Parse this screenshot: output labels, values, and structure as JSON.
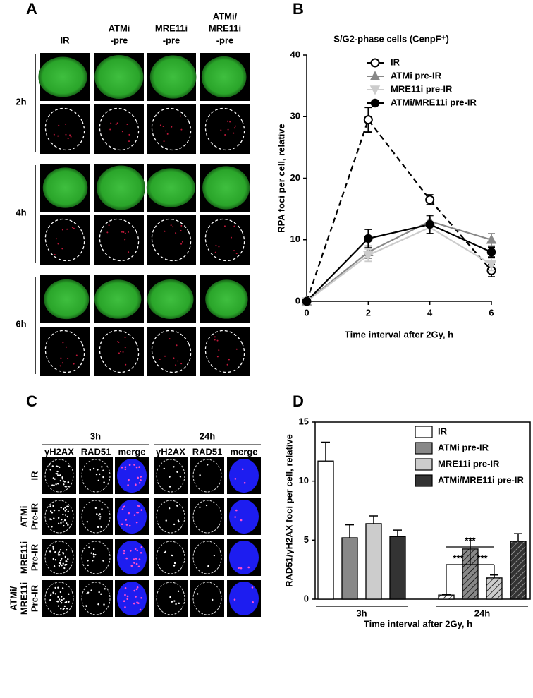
{
  "panel_labels": [
    "A",
    "B",
    "C",
    "D"
  ],
  "panel_a": {
    "columns": [
      [
        "IR"
      ],
      [
        "ATMi",
        "-pre"
      ],
      [
        "MRE11i",
        "-pre"
      ],
      [
        "ATMi/",
        "MRE11i",
        "-pre"
      ]
    ],
    "rows": [
      "2h",
      "4h",
      "6h"
    ]
  },
  "panel_c": {
    "groups": [
      "3h",
      "24h"
    ],
    "channels": [
      "γH2AX",
      "RAD51",
      "merge"
    ],
    "rows": [
      [
        "IR"
      ],
      [
        "ATMi",
        "Pre-IR"
      ],
      [
        "MRE11i",
        "Pre-IR"
      ],
      [
        "ATMi/",
        "MRE11i",
        "Pre-IR"
      ]
    ]
  },
  "chart_data": [
    {
      "type": "line",
      "title": "S/G2-phase cells (CenpF⁺)",
      "x_label": "Time interval after 2Gy, h",
      "y_label": "RPA foci per cell, relative",
      "x": [
        0,
        2,
        4,
        6
      ],
      "xlim": [
        0,
        6
      ],
      "xticks": [
        0,
        2,
        4,
        6
      ],
      "ylim": [
        0,
        40
      ],
      "yticks": [
        0,
        10,
        20,
        30,
        40
      ],
      "legend": "upper right",
      "series": [
        {
          "name": "IR",
          "color": "#000000",
          "marker": "open-circle",
          "dash": true,
          "values": [
            0,
            29.5,
            16.5,
            5
          ],
          "errors": [
            0,
            2,
            0.8,
            1
          ]
        },
        {
          "name": "ATMi pre-IR",
          "color": "#888888",
          "marker": "triangle",
          "dash": false,
          "values": [
            0,
            8,
            13,
            10
          ],
          "errors": [
            0,
            1,
            0.9,
            1
          ]
        },
        {
          "name": "MRE11i pre-IR",
          "color": "#cccccc",
          "marker": "inverted-triangle",
          "dash": false,
          "values": [
            0,
            7.5,
            12,
            6
          ],
          "errors": [
            0,
            1,
            1,
            1
          ]
        },
        {
          "name": "ATMi/MRE11i pre-IR",
          "color": "#000000",
          "marker": "circle",
          "dash": false,
          "values": [
            0,
            10.2,
            12.5,
            8
          ],
          "errors": [
            0,
            1.5,
            1.5,
            0.8
          ]
        }
      ]
    },
    {
      "type": "bar",
      "x_label": "Time interval after 2Gy, h",
      "y_label": "RAD51/γH2AX foci per cell, relative",
      "categories": [
        "3h",
        "24h"
      ],
      "hatch": [
        false,
        true
      ],
      "ylim": [
        0,
        15
      ],
      "yticks": [
        0,
        5,
        10,
        15
      ],
      "legend": "upper right",
      "annotations": [
        "***",
        "***",
        "***"
      ],
      "series": [
        {
          "name": "IR",
          "color": "#ffffff",
          "values": [
            11.7,
            0.35
          ],
          "errors": [
            1.6,
            0.05
          ]
        },
        {
          "name": "ATMi pre-IR",
          "color": "#888888",
          "values": [
            5.2,
            4.25
          ],
          "errors": [
            1.1,
            0.9
          ]
        },
        {
          "name": "MRE11i pre-IR",
          "color": "#cccccc",
          "values": [
            6.4,
            1.8
          ],
          "errors": [
            0.65,
            0.25
          ]
        },
        {
          "name": "ATMi/MRE11i pre-IR",
          "color": "#333333",
          "values": [
            5.3,
            4.9
          ],
          "errors": [
            0.55,
            0.65
          ]
        }
      ]
    }
  ]
}
